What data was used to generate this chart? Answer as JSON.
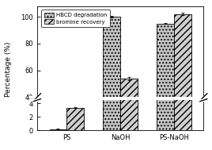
{
  "categories": [
    "PS",
    "NaOH",
    "PS-NaOH"
  ],
  "hbcd_degradation": [
    0.2,
    100.0,
    95.0
  ],
  "bromine_recovery": [
    3.4,
    54.0,
    102.0
  ],
  "hbcd_errors": [
    0.05,
    0.4,
    0.5
  ],
  "bromine_errors": [
    0.05,
    1.2,
    1.0
  ],
  "bar_width": 0.32,
  "hbcd_color": "#c8c8c8",
  "hbcd_hatch": "....",
  "bromine_color": "#d0d0d0",
  "bromine_hatch": "////",
  "ylabel": "Percentage (%)",
  "lower_ylim": [
    0,
    4.5
  ],
  "upper_ylim": [
    40,
    108
  ],
  "background_color": "#ffffff",
  "legend_labels": [
    "HBCD degradation",
    "bromine recovery"
  ],
  "yticks_lower": [
    0,
    2,
    4
  ],
  "yticks_upper": [
    40,
    60,
    80,
    100
  ]
}
